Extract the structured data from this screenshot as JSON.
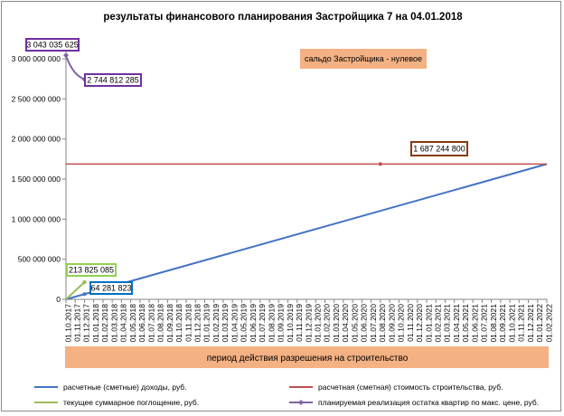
{
  "chart_data": {
    "type": "line",
    "title": "результаты финансового планирования Застройщика 7 на 04.01.2018",
    "xlabel": "период  действия разрешения на строительство",
    "ylim": [
      0,
      3000000000
    ],
    "yticks": [
      "0",
      "500 000 000",
      "1 000 000 000",
      "1 500 000 000",
      "2 000 000 000",
      "2 500 000 000",
      "3 000 000 000"
    ],
    "categories": [
      "01.10.2017",
      "01.11.2017",
      "01.12.2017",
      "01.01.2018",
      "01.02.2018",
      "01.03.2018",
      "01.04.2018",
      "01.05.2018",
      "01.06.2018",
      "01.07.2018",
      "01.08.2018",
      "01.09.2018",
      "01.10.2018",
      "01.11.2018",
      "01.12.2018",
      "01.01.2019",
      "01.02.2019",
      "01.03.2019",
      "01.04.2019",
      "01.05.2019",
      "01.06.2019",
      "01.07.2019",
      "01.08.2019",
      "01.09.2019",
      "01.10.2019",
      "01.11.2019",
      "01.12.2019",
      "01.01.2020",
      "01.02.2020",
      "01.03.2020",
      "01.04.2020",
      "01.05.2020",
      "01.06.2020",
      "01.07.2020",
      "01.08.2020",
      "01.09.2020",
      "01.10.2020",
      "01.11.2020",
      "01.12.2020",
      "01.01.2021",
      "01.02.2021",
      "01.03.2021",
      "01.04.2021",
      "01.05.2021",
      "01.06.2021",
      "01.07.2021",
      "01.08.2021",
      "01.09.2021",
      "01.10.2021",
      "01.11.2021",
      "01.12.2021",
      "01.01.2022",
      "01.02.2022"
    ],
    "series": [
      {
        "name": "расчетные (сметные) доходы, руб.",
        "color": "#4472C4",
        "start_index": 0,
        "end_index": 52,
        "start_value": 0,
        "end_value": 1687244800
      },
      {
        "name": "расчетная (сметная) стоимость строительства, руб.",
        "color": "#C0504D",
        "start_index": 0,
        "end_index": 52,
        "start_value": 1687244800,
        "end_value": 1687244800
      },
      {
        "name": "текущее суммарное поглощение, руб.",
        "color": "#9BBB59",
        "points": [
          [
            0,
            0
          ],
          [
            2,
            213825085
          ]
        ]
      },
      {
        "name": "планируемая реализация остатка квартир по макс. цене, руб.",
        "color": "#8064A2",
        "points": [
          [
            0,
            3043035625
          ],
          [
            1,
            2850000000
          ],
          [
            2,
            2744812285
          ]
        ]
      }
    ],
    "annotations": [
      {
        "id": "income",
        "text": "64 281 823",
        "border": "#0070C0"
      },
      {
        "id": "absorption",
        "text": "213 825 085",
        "border": "#92D050"
      },
      {
        "id": "remainder_start",
        "text": "3 043 035 625",
        "border": "#7030A0"
      },
      {
        "id": "remainder_end",
        "text": "2 744 812 285",
        "border": "#7030A0"
      },
      {
        "id": "cost",
        "text": "1 687 244 800",
        "border": "#843C0C"
      },
      {
        "id": "balance",
        "text": "сальдо Застройщика - нулевое",
        "fill": "#F4B183"
      }
    ],
    "xlabel_fill": "#F4B183",
    "grid": false,
    "legend_position": "bottom"
  }
}
